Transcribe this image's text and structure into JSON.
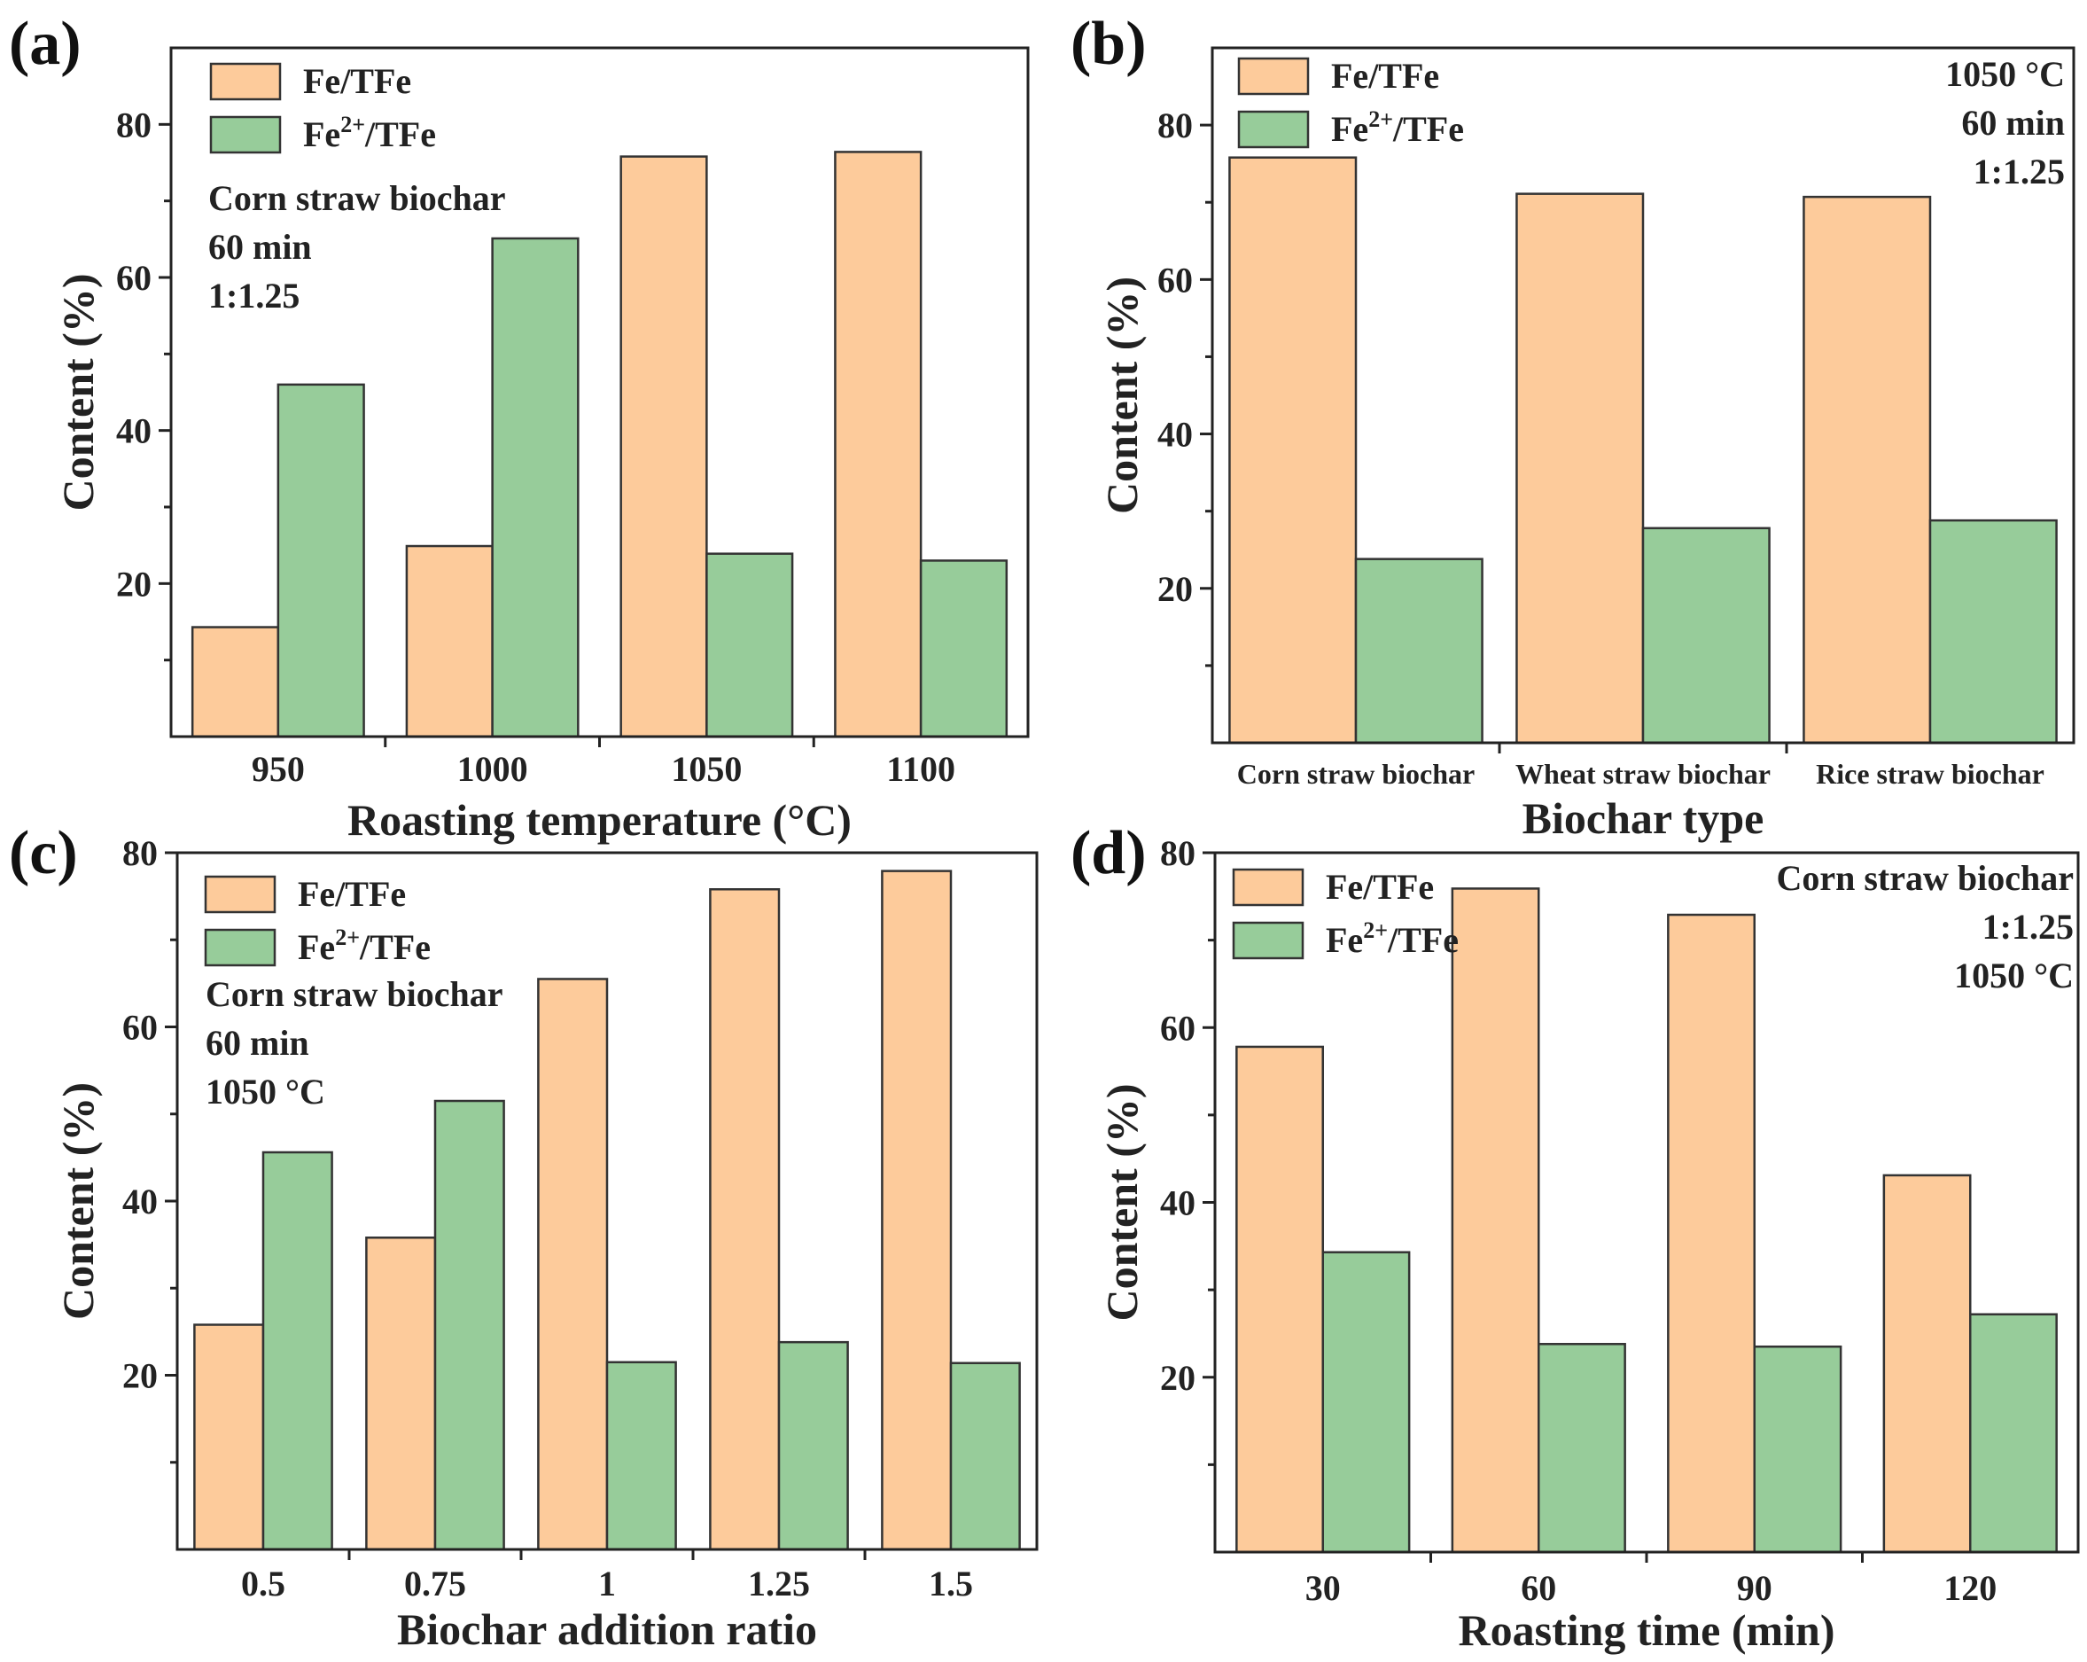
{
  "figure": {
    "background": "#ffffff"
  },
  "colors": {
    "fe_tfe": "#FDCB9B",
    "fe2_tfe": "#97CC9A",
    "axis": "#222222"
  },
  "chart_data": [
    {
      "panel_label": "(a)",
      "type": "bar",
      "categories": [
        "950",
        "1000",
        "1050",
        "1100"
      ],
      "series": [
        {
          "name": "Fe/TFe",
          "values": [
            14.3,
            24.9,
            75.8,
            76.4
          ]
        },
        {
          "name": "Fe2+/TFe",
          "values": [
            46.0,
            65.1,
            23.9,
            23.0
          ]
        }
      ],
      "xlabel": "Roasting temperature (°C)",
      "ylabel": "Content (%)",
      "ylim": [
        0,
        90
      ],
      "yticks": [
        20,
        40,
        60,
        80
      ],
      "legend": {
        "placement": "top-left",
        "entries": [
          {
            "main": "Fe/TFe",
            "sup": "",
            "tail": ""
          },
          {
            "main": "Fe",
            "sup": "2+",
            "tail": "/TFe"
          }
        ]
      },
      "annotations": {
        "placement": "left",
        "lines": [
          "Corn straw biochar",
          "60 min",
          "1:1.25"
        ]
      }
    },
    {
      "panel_label": "(b)",
      "type": "bar",
      "categories": [
        "Corn straw biochar",
        "Wheat straw biochar",
        "Rice straw biochar"
      ],
      "series": [
        {
          "name": "Fe/TFe",
          "values": [
            75.8,
            71.1,
            70.7
          ]
        },
        {
          "name": "Fe2+/TFe",
          "values": [
            23.8,
            27.8,
            28.8
          ]
        }
      ],
      "xlabel": "Biochar type",
      "ylabel": "Content (%)",
      "ylim": [
        0,
        90
      ],
      "yticks": [
        20,
        40,
        60,
        80
      ],
      "legend": {
        "placement": "top-left",
        "entries": [
          {
            "main": "Fe/TFe",
            "sup": "",
            "tail": ""
          },
          {
            "main": "Fe",
            "sup": "2+",
            "tail": "/TFe"
          }
        ]
      },
      "annotations": {
        "placement": "top-right",
        "lines": [
          "1050 °C",
          "60 min",
          "1:1.25"
        ]
      }
    },
    {
      "panel_label": "(c)",
      "type": "bar",
      "categories": [
        "0.5",
        "0.75",
        "1",
        "1.25",
        "1.5"
      ],
      "series": [
        {
          "name": "Fe/TFe",
          "values": [
            25.8,
            35.8,
            65.5,
            75.8,
            77.9
          ]
        },
        {
          "name": "Fe2+/TFe",
          "values": [
            45.6,
            51.5,
            21.5,
            23.8,
            21.4
          ]
        }
      ],
      "xlabel": "Biochar addition ratio",
      "ylabel": "Content (%)",
      "ylim": [
        0,
        80
      ],
      "yticks": [
        20,
        40,
        60,
        80
      ],
      "legend": {
        "placement": "top-left",
        "entries": [
          {
            "main": "Fe/TFe",
            "sup": "",
            "tail": ""
          },
          {
            "main": "Fe",
            "sup": "2+",
            "tail": "/TFe"
          }
        ]
      },
      "annotations": {
        "placement": "left",
        "lines": [
          "Corn straw biochar",
          "60 min",
          "1050 °C"
        ]
      }
    },
    {
      "panel_label": "(d)",
      "type": "bar",
      "categories": [
        "30",
        "60",
        "90",
        "120"
      ],
      "series": [
        {
          "name": "Fe/TFe",
          "values": [
            57.8,
            75.9,
            72.9,
            43.1
          ]
        },
        {
          "name": "Fe2+/TFe",
          "values": [
            34.3,
            23.8,
            23.5,
            27.2
          ]
        }
      ],
      "xlabel": "Roasting time (min)",
      "ylabel": "Content (%)",
      "ylim": [
        0,
        80
      ],
      "yticks": [
        20,
        40,
        60,
        80
      ],
      "legend": {
        "placement": "top-left",
        "entries": [
          {
            "main": "Fe/TFe",
            "sup": "",
            "tail": ""
          },
          {
            "main": "Fe",
            "sup": "2+",
            "tail": "/TFe"
          }
        ]
      },
      "annotations": {
        "placement": "top-right",
        "lines": [
          "Corn straw biochar",
          "1:1.25",
          "1050 °C"
        ]
      }
    }
  ]
}
